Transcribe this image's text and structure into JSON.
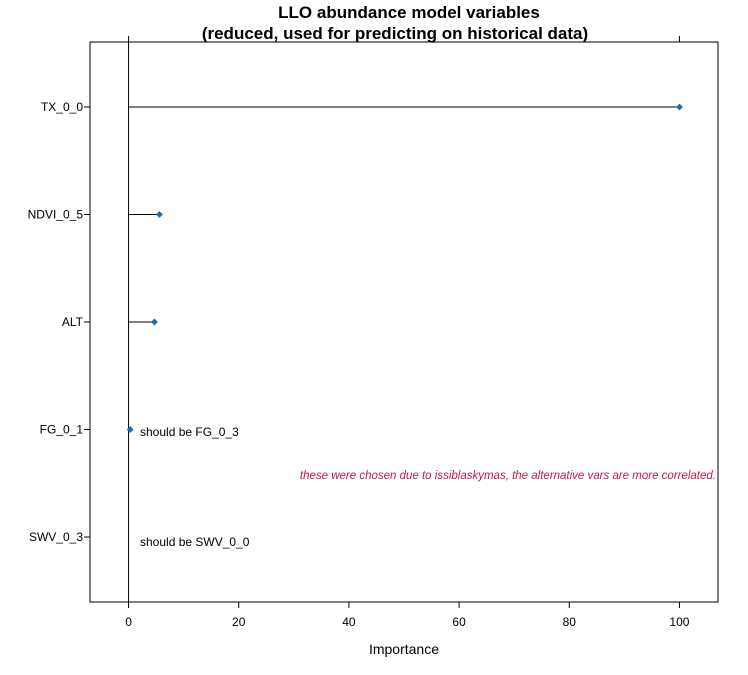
{
  "chart_data": {
    "type": "dot",
    "title": "LLO abundance model variables",
    "subtitle": "(reduced, used for predicting on historical data)",
    "xlabel": "Importance",
    "ylabel": "",
    "xlim": [
      -7,
      107
    ],
    "xticks": [
      "0",
      "20",
      "40",
      "60",
      "80",
      "100"
    ],
    "categories": [
      "TX_0_0",
      "NDVI_0_5",
      "ALT",
      "FG_0_1",
      "SWV_0_3"
    ],
    "values": [
      100,
      5.6,
      4.7,
      0.3,
      null
    ],
    "grid": false,
    "annotations": {
      "fg_note": "should be FG_0_3",
      "swv_note": "should be SWV_0_0",
      "reason_note": "these were chosen due to issiblaskymas, the alternative vars are more correlated."
    }
  },
  "colors": {
    "point": "#1f6fa6",
    "note_red": "#c2185b",
    "axis": "#000000"
  }
}
